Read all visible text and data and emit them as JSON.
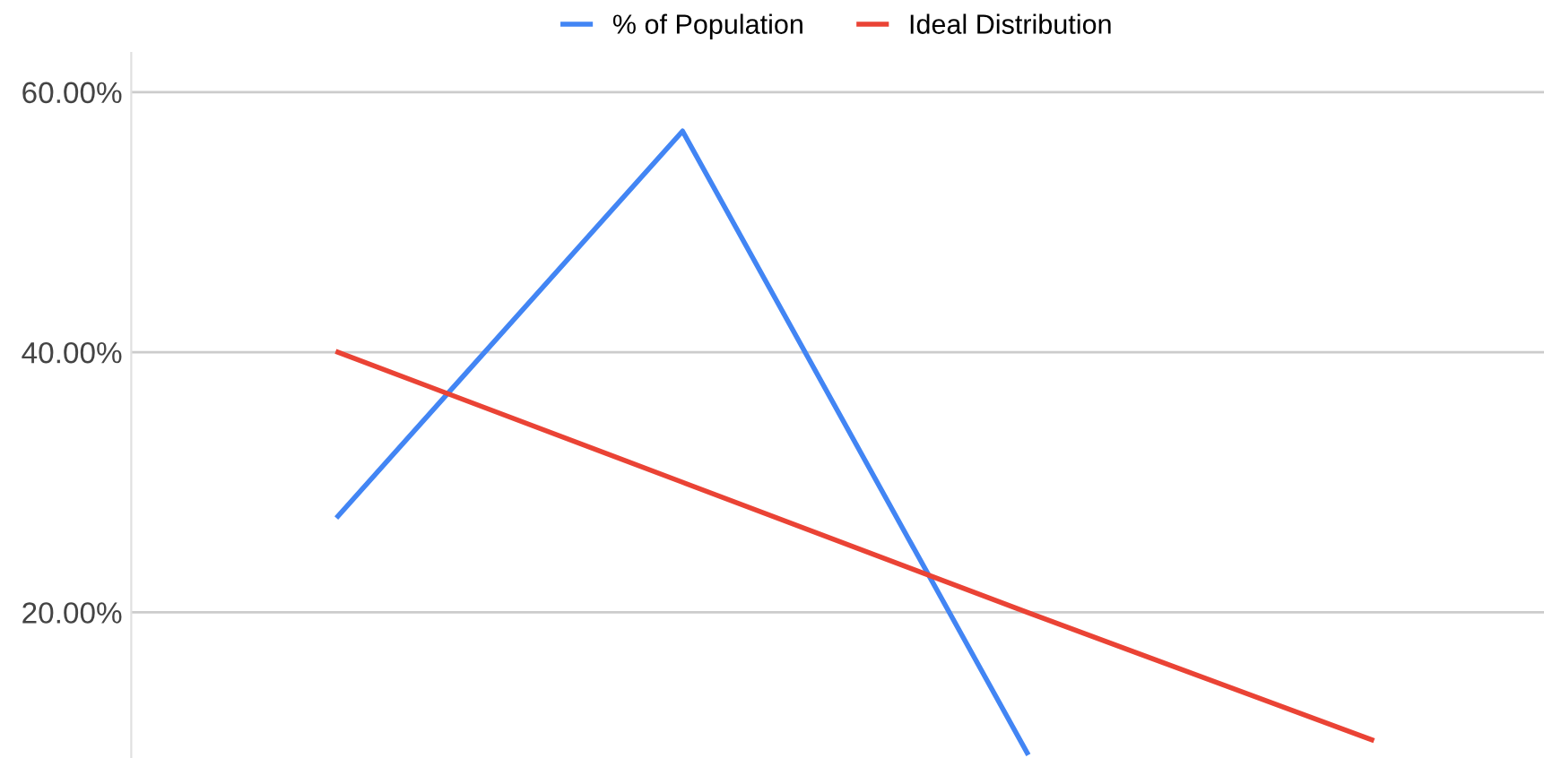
{
  "chart_data": {
    "type": "line",
    "categories": [
      null,
      null,
      null,
      null
    ],
    "series": [
      {
        "name": "% of Population",
        "color": "#4285f4",
        "values": [
          27.4,
          57,
          9.2,
          null
        ]
      },
      {
        "name": "Ideal Distribution",
        "color": "#ea4335",
        "values": [
          40,
          30,
          20,
          10.2
        ]
      }
    ],
    "ylim": [
      8.8,
      63
    ],
    "yticks": [
      {
        "value": 20,
        "label": "20.00%"
      },
      {
        "value": 40,
        "label": "40.00%"
      },
      {
        "value": 60,
        "label": "60.00%"
      }
    ],
    "grid": "y",
    "legend": "top",
    "tick_labels": "y"
  }
}
